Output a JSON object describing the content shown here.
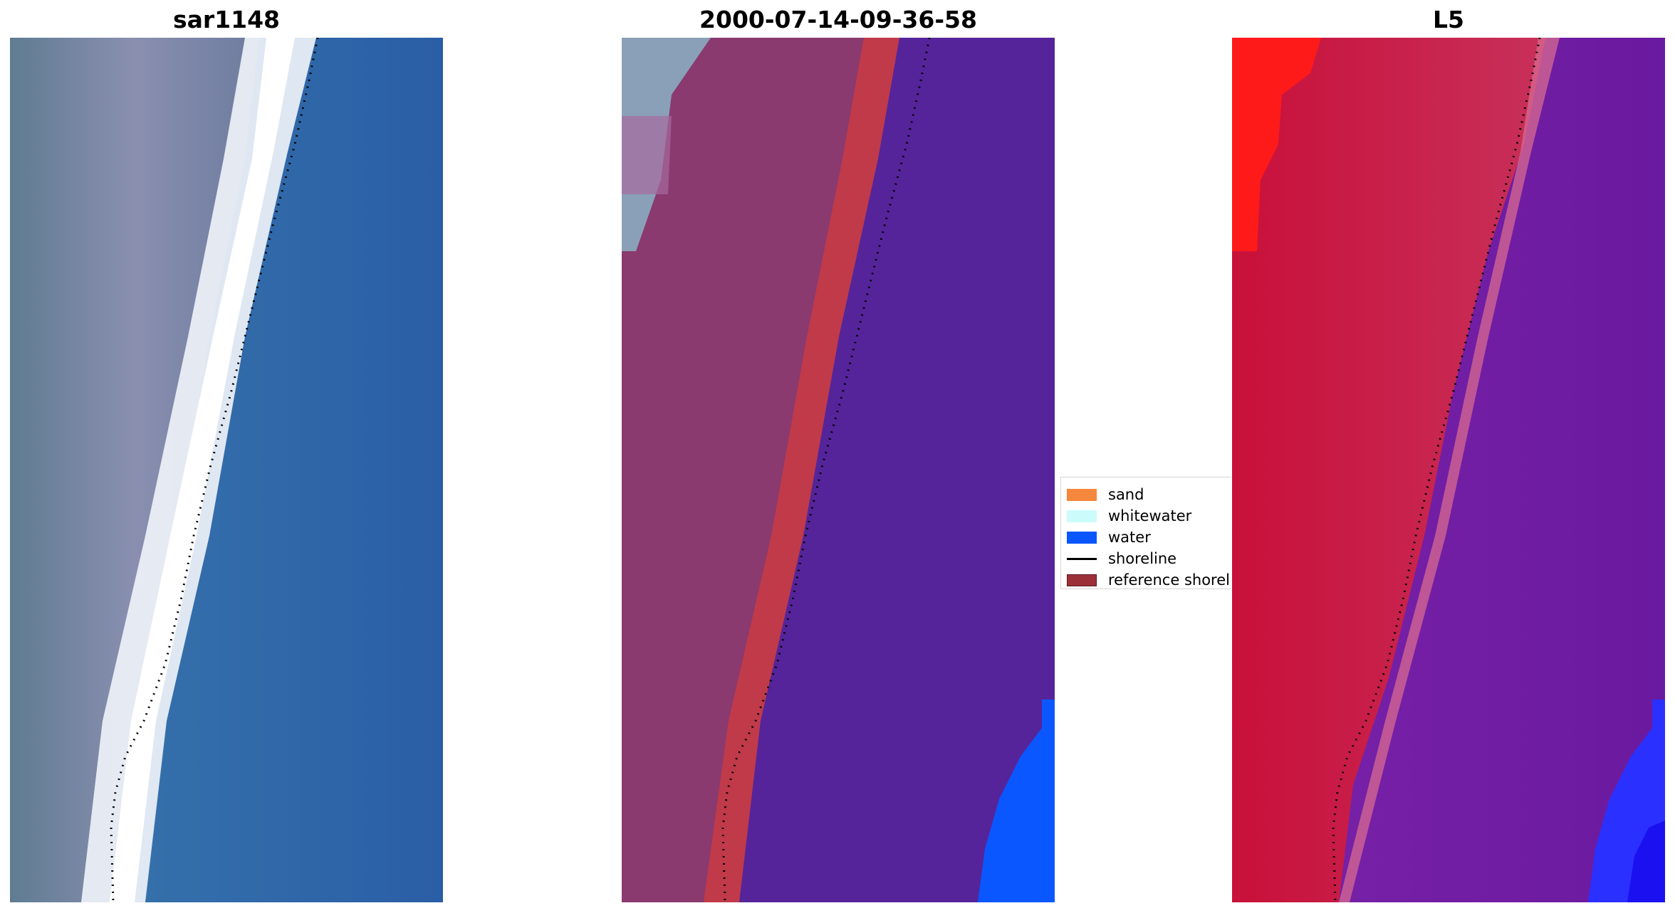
{
  "panels": [
    {
      "title": "sar1148"
    },
    {
      "title": "2000-07-14-09-36-58"
    },
    {
      "title": "L5"
    }
  ],
  "legend": {
    "items": [
      {
        "label": "sand",
        "color": "#f5883d",
        "kind": "patch"
      },
      {
        "label": "whitewater",
        "color": "#ccfbfb",
        "kind": "patch"
      },
      {
        "label": "water",
        "color": "#0b57ff",
        "kind": "patch"
      },
      {
        "label": "shoreline",
        "color": "#000000",
        "kind": "line"
      },
      {
        "label": "reference shoreline",
        "color": "#9c3038",
        "kind": "patch"
      }
    ]
  },
  "colors": {
    "rgb_water": "#2b5fa6",
    "rgb_land": "#6a7a99",
    "rgb_surf": "#f2f4f8",
    "class_land": "#8a3a6e",
    "class_sand_band": "#c03a4a",
    "class_water": "#55249a",
    "class_ocean": "#0b57ff",
    "prob_land": "#c02040",
    "prob_water": "#6a1aa0",
    "prob_ocean": "#2a30ff",
    "prob_red": "#ff1a1a"
  }
}
